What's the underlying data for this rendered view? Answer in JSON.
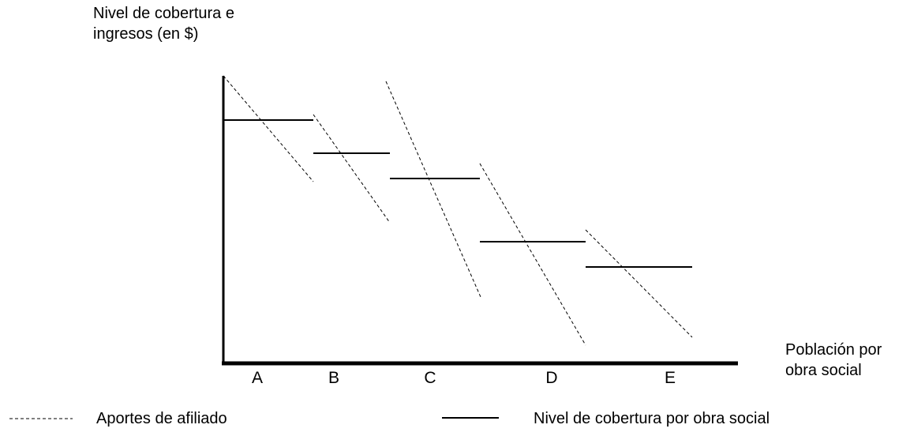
{
  "y_axis": {
    "line1": "Nivel de cobertura e",
    "line2": "ingresos (en $)"
  },
  "x_axis": {
    "line1": "Población por",
    "line2": "obra social"
  },
  "categories": [
    "A",
    "B",
    "C",
    "D",
    "E"
  ],
  "legend": {
    "dashed_label": "Aportes de afiliado",
    "solid_label": "Nivel de cobertura por obra social"
  },
  "colors": {
    "ink": "#000000",
    "background": "#ffffff"
  }
}
